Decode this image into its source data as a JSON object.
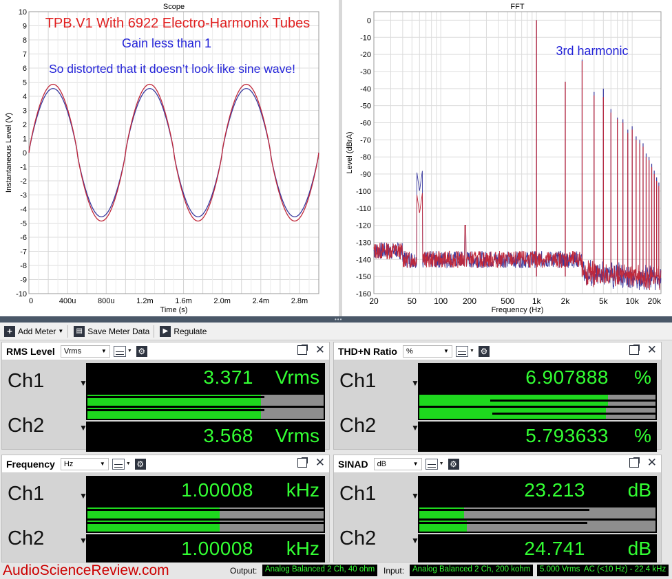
{
  "scope": {
    "title": "Scope",
    "overlay_title": "TPB.V1 With 6922 Electro-Harmonix Tubes",
    "overlay_gain": "Gain less than 1",
    "overlay_distort": "So distorted that it doesn’t look like sine wave!",
    "ylabel": "Instantaneous Level (V)",
    "xlabel": "Time (s)",
    "yticks": [
      "10",
      "9",
      "8",
      "7",
      "6",
      "5",
      "4",
      "3",
      "2",
      "1",
      "0",
      "-1",
      "-2",
      "-3",
      "-4",
      "-5",
      "-6",
      "-7",
      "-8",
      "-9",
      "-10"
    ],
    "xticks": [
      "0",
      "400u",
      "800u",
      "1.2m",
      "1.6m",
      "2.0m",
      "2.4m",
      "2.8m"
    ],
    "colors": {
      "ch1": "#3a3a9e",
      "ch2": "#c0283a"
    }
  },
  "fft": {
    "title": "FFT",
    "annotation": "3rd harmonic",
    "ylabel": "Level (dBrA)",
    "xlabel": "Frequency (Hz)",
    "yticks": [
      "0",
      "-10",
      "-20",
      "-30",
      "-40",
      "-50",
      "-60",
      "-70",
      "-80",
      "-90",
      "-100",
      "-110",
      "-120",
      "-130",
      "-140",
      "-150",
      "-160"
    ],
    "xticks": [
      "20",
      "50",
      "100",
      "200",
      "500",
      "1k",
      "2k",
      "5k",
      "10k",
      "20k"
    ]
  },
  "chart_data": [
    {
      "type": "line",
      "title": "Scope",
      "xlabel": "Time (s)",
      "ylabel": "Instantaneous Level (V)",
      "xlim": [
        0,
        0.003
      ],
      "ylim": [
        -10,
        10
      ],
      "grid": true,
      "series": [
        {
          "name": "Ch1",
          "frequency_hz": 1000,
          "peak_v": 4.55
        },
        {
          "name": "Ch2",
          "frequency_hz": 1000,
          "peak_v": 4.85
        }
      ]
    },
    {
      "type": "line",
      "title": "FFT",
      "xlabel": "Frequency (Hz)",
      "ylabel": "Level (dBrA)",
      "xscale": "log",
      "xlim": [
        20,
        20000
      ],
      "ylim": [
        -160,
        5
      ],
      "grid": true,
      "harmonics": {
        "x": [
          1000,
          2000,
          3000,
          4000,
          5000,
          6000,
          7000,
          8000,
          9000,
          10000,
          11000,
          12000,
          13000,
          14000,
          15000,
          16000,
          17000,
          18000,
          19000
        ],
        "ch1": [
          0,
          -36,
          -23,
          -42,
          -40,
          -52,
          -57,
          -58,
          -64,
          -62,
          -68,
          -70,
          -72,
          -78,
          -80,
          -84,
          -88,
          -92,
          -95
        ],
        "ch2": [
          0,
          -36,
          -24,
          -44,
          -45,
          -54,
          -58,
          -60,
          -66,
          -64,
          -70,
          -72,
          -74,
          -80,
          -82,
          -86,
          -90,
          -94,
          -97
        ]
      },
      "hum_peak": {
        "x": 60,
        "ch1": -100,
        "ch2": -113
      },
      "noise_floor": -140
    }
  ],
  "toolbar": {
    "add_meter": "Add Meter",
    "save_meter": "Save Meter Data",
    "regulate": "Regulate"
  },
  "meters": {
    "rms": {
      "title": "RMS Level",
      "unit_select": "Vrms",
      "ch1": {
        "label": "Ch1",
        "value": "3.371",
        "unit": "Vrms",
        "fill": 0.735,
        "line": 0.75
      },
      "ch2": {
        "label": "Ch2",
        "value": "3.568",
        "unit": "Vrms",
        "fill": 0.735,
        "line": 0.75
      }
    },
    "thdn": {
      "title": "THD+N Ratio",
      "unit_select": "%",
      "ch1": {
        "label": "Ch1",
        "value": "6.907888",
        "unit": "%",
        "fill": 0.8,
        "line_start": 0.3
      },
      "ch2": {
        "label": "Ch2",
        "value": "5.793633",
        "unit": "%",
        "fill": 0.79,
        "line_start": 0.31
      }
    },
    "freq": {
      "title": "Frequency",
      "unit_select": "Hz",
      "ch1": {
        "label": "Ch1",
        "value": "1.00008",
        "unit": "kHz",
        "fill": 0.56,
        "line": 1.0
      },
      "ch2": {
        "label": "Ch2",
        "value": "1.00008",
        "unit": "kHz",
        "fill": 0.56,
        "line": 1.0
      }
    },
    "sinad": {
      "title": "SINAD",
      "unit_select": "dB",
      "ch1": {
        "label": "Ch1",
        "value": "23.213",
        "unit": "dB",
        "fill": 0.19,
        "line": 0.72
      },
      "ch2": {
        "label": "Ch2",
        "value": "24.741",
        "unit": "dB",
        "fill": 0.2,
        "line": 0.71
      }
    }
  },
  "status": {
    "brand": "AudioScienceReview.com",
    "output_label": "Output:",
    "output_value": "Analog Balanced 2 Ch, 40 ohm",
    "input_label": "Input:",
    "input_value": "Analog Balanced 2 Ch, 200 kohm",
    "input_level": "5.000 Vrms",
    "filter": "AC (<10 Hz) - 22.4 kHz"
  }
}
